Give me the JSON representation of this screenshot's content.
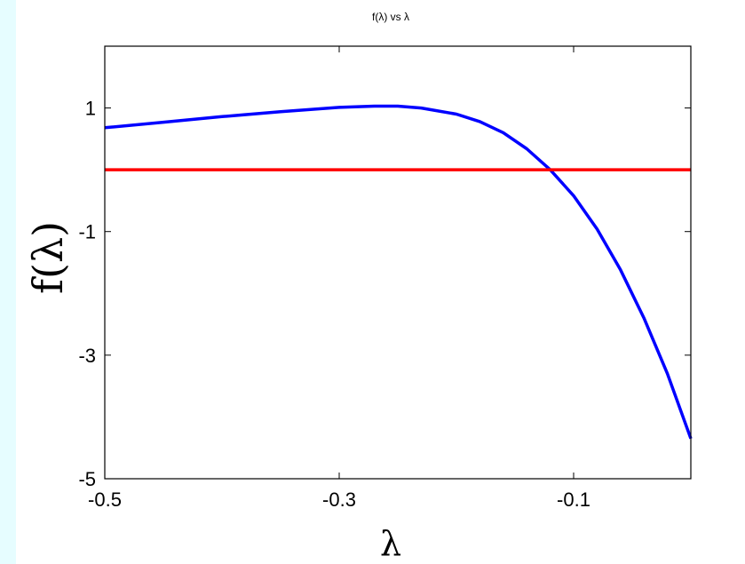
{
  "background_color": "#e6fdff",
  "chart_data": {
    "type": "line",
    "title": "f(λ) vs λ",
    "xlabel": "λ",
    "ylabel": "f(λ)",
    "xlim": [
      -0.5,
      0.0
    ],
    "ylim": [
      -5,
      2
    ],
    "xticks": [
      -0.5,
      -0.3,
      -0.1
    ],
    "xtick_labels": [
      "-0.5",
      "-0.3",
      "-0.1"
    ],
    "yticks": [
      -5,
      -3,
      -1,
      1
    ],
    "ytick_labels": [
      "-5",
      "-3",
      "-1",
      "1"
    ],
    "grid": false,
    "series": [
      {
        "color": "#0000ff",
        "x": [
          -0.5,
          -0.45,
          -0.4,
          -0.35,
          -0.3,
          -0.27,
          -0.25,
          -0.23,
          -0.2,
          -0.18,
          -0.16,
          -0.14,
          -0.12,
          -0.1,
          -0.08,
          -0.06,
          -0.04,
          -0.02,
          0.0
        ],
        "y": [
          0.68,
          0.77,
          0.86,
          0.94,
          1.01,
          1.03,
          1.03,
          1.0,
          0.9,
          0.78,
          0.6,
          0.34,
          0.0,
          -0.42,
          -0.96,
          -1.62,
          -2.4,
          -3.3,
          -4.35
        ]
      },
      {
        "color": "#ff0000",
        "x": [
          -0.5,
          0.0
        ],
        "y": [
          0.0,
          0.0
        ]
      }
    ]
  }
}
